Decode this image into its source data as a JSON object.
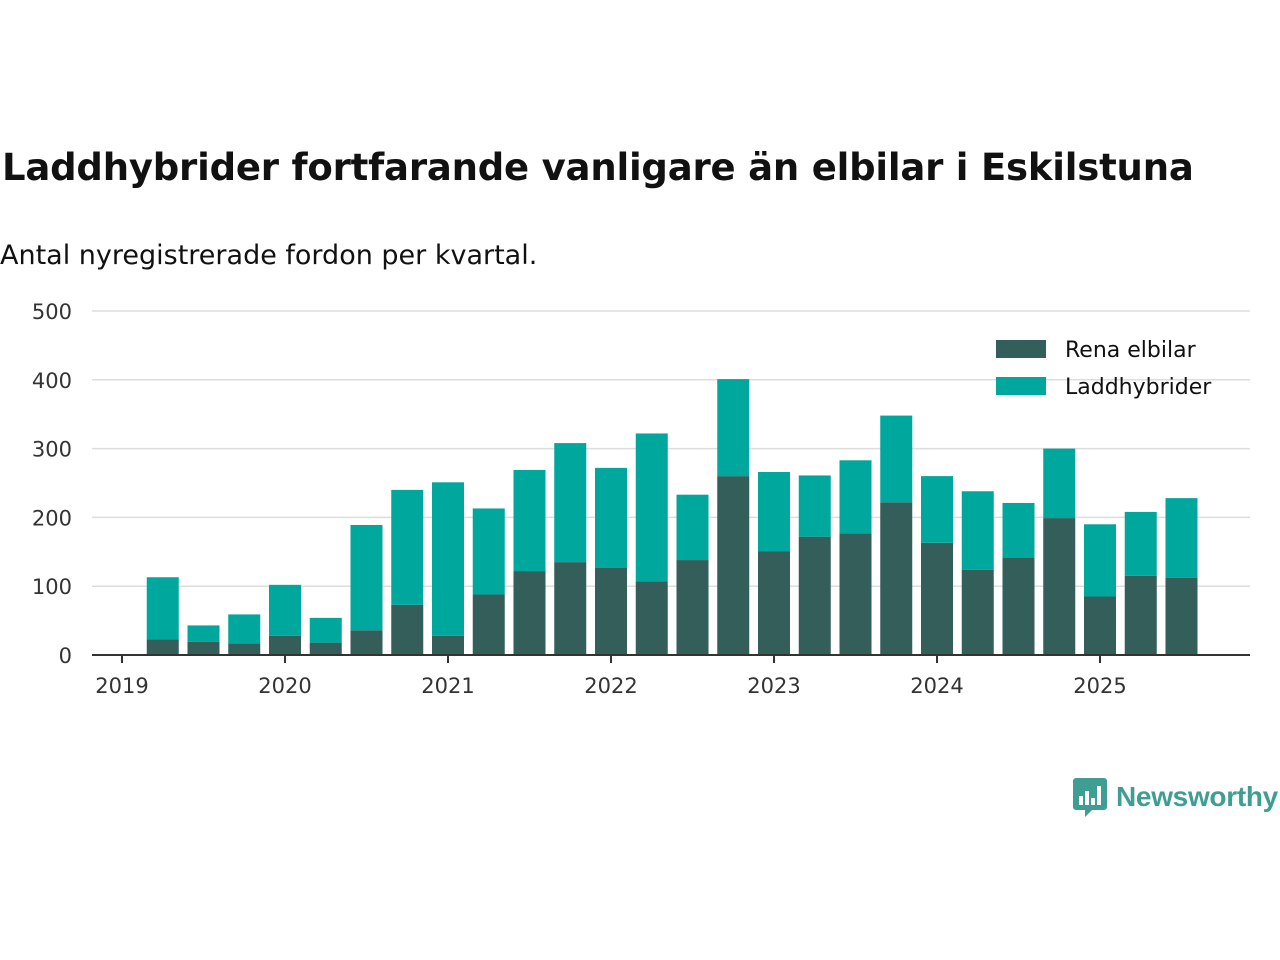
{
  "header": {
    "title": "Laddhybrider fortfarande vanligare än elbilar i Eskilstuna",
    "subtitle": "Antal nyregistrerade fordon per kvartal."
  },
  "brand": {
    "name": "Newsworthy",
    "color": "#3f9e93"
  },
  "chart_data": {
    "type": "bar",
    "stacked": true,
    "title": "Laddhybrider fortfarande vanligare än elbilar i Eskilstuna",
    "subtitle": "Antal nyregistrerade fordon per kvartal.",
    "xlabel": "",
    "ylabel": "",
    "ylim": [
      0,
      500
    ],
    "y_ticks": [
      0,
      100,
      200,
      300,
      400,
      500
    ],
    "x_ticks": [
      "2019",
      "2020",
      "2021",
      "2022",
      "2023",
      "2024",
      "2025"
    ],
    "grid": true,
    "legend_position": "top-right",
    "categories": [
      "2019 Q2",
      "2019 Q3",
      "2019 Q4",
      "2020 Q1",
      "2020 Q2",
      "2020 Q3",
      "2020 Q4",
      "2021 Q1",
      "2021 Q2",
      "2021 Q3",
      "2021 Q4",
      "2022 Q1",
      "2022 Q2",
      "2022 Q3",
      "2022 Q4",
      "2023 Q1",
      "2023 Q2",
      "2023 Q3",
      "2023 Q4",
      "2024 Q1",
      "2024 Q2",
      "2024 Q3",
      "2024 Q4",
      "2025 Q1",
      "2025 Q2",
      "2025 Q3"
    ],
    "series": [
      {
        "name": "Rena elbilar",
        "color": "#335e5a",
        "values": [
          23,
          19,
          17,
          28,
          18,
          36,
          73,
          28,
          88,
          122,
          135,
          127,
          107,
          138,
          260,
          151,
          172,
          177,
          222,
          163,
          124,
          141,
          199,
          85,
          115,
          112
        ]
      },
      {
        "name": "Laddhybrider",
        "color": "#00a79d",
        "values": [
          90,
          24,
          42,
          74,
          36,
          153,
          167,
          223,
          125,
          147,
          173,
          145,
          215,
          95,
          141,
          115,
          89,
          106,
          126,
          97,
          114,
          80,
          101,
          105,
          93,
          116
        ]
      }
    ]
  }
}
